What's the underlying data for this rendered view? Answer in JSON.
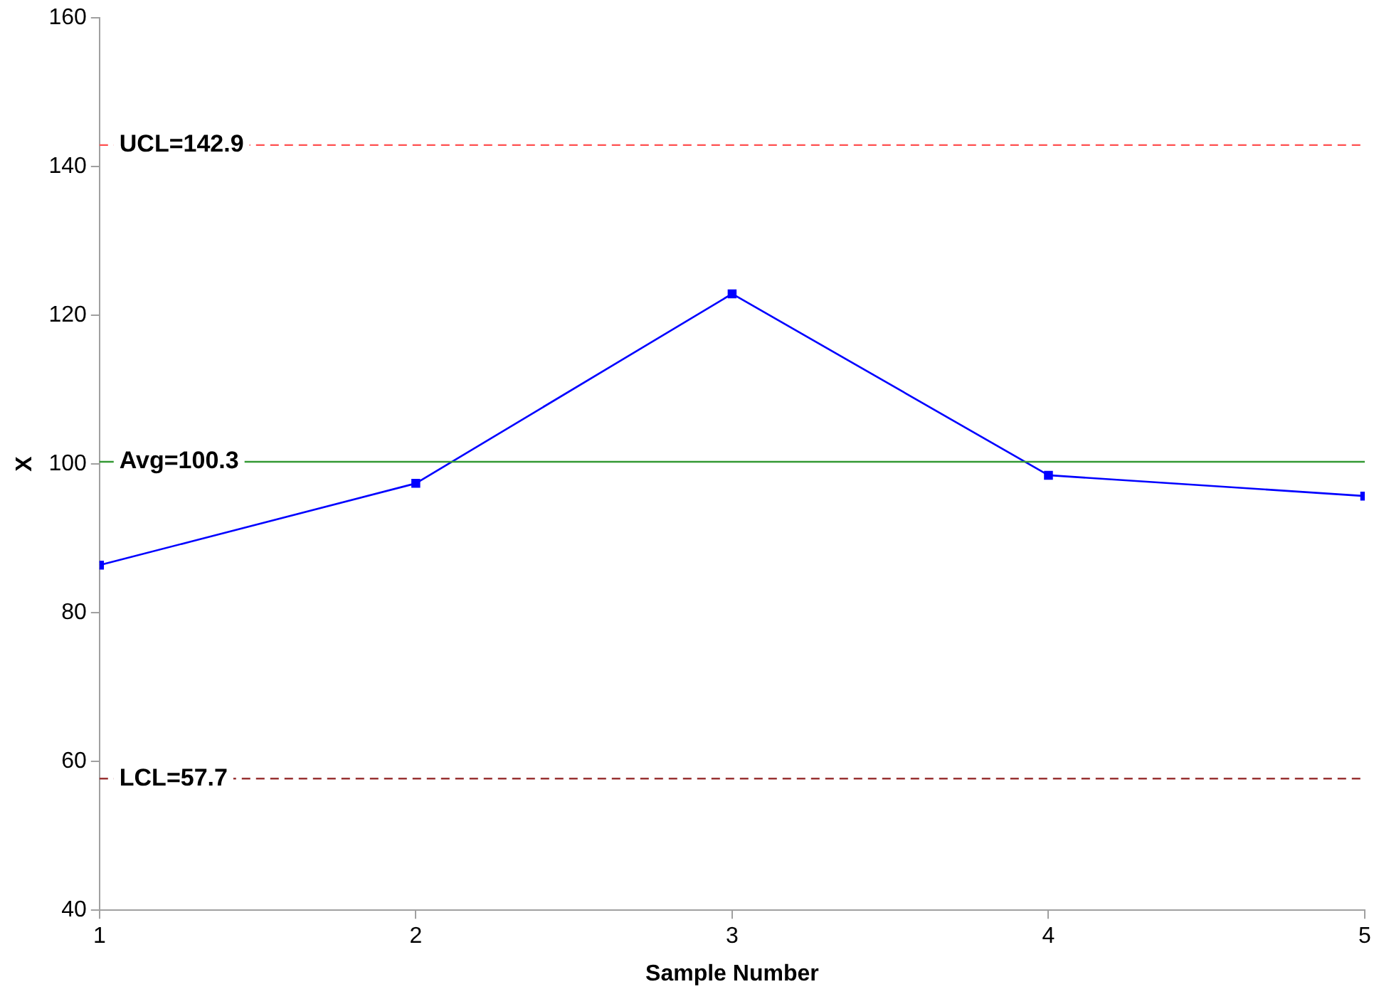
{
  "chart_data": {
    "type": "line",
    "xlabel": "Sample Number",
    "ylabel": "X",
    "x": [
      1,
      2,
      3,
      4,
      5
    ],
    "series": [
      {
        "color": "#0000ff",
        "values": [
          86.4,
          97.4,
          122.9,
          98.5,
          95.7
        ]
      }
    ],
    "xlim": [
      1,
      5
    ],
    "xticks": [
      1,
      2,
      3,
      4,
      5
    ],
    "ylim": [
      40,
      160
    ],
    "yticks": [
      40,
      60,
      80,
      100,
      120,
      140,
      160
    ],
    "ref_lines": [
      {
        "axis": "y",
        "value": 142.9,
        "label": "UCL=142.9",
        "color": "#ff5050",
        "line_style": "dashed"
      },
      {
        "axis": "y",
        "value": 100.3,
        "label": "Avg=100.3",
        "color": "#339933",
        "line_style": "solid"
      },
      {
        "axis": "y",
        "value": 57.7,
        "label": "LCL=57.7",
        "color": "#993333",
        "line_style": "dashed"
      }
    ],
    "grid": false,
    "legend": false,
    "marker": "square",
    "line_style": "solid"
  }
}
